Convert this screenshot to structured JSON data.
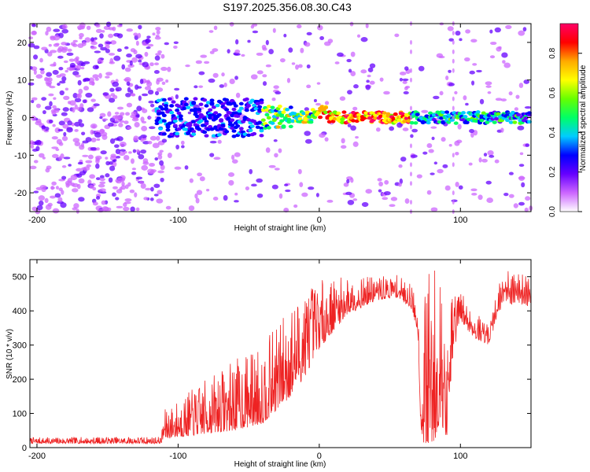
{
  "title": "S197.2025.356.08.30.C43",
  "chart_data": [
    {
      "type": "heatmap",
      "name": "spectrogram",
      "xlabel": "Height of straight line (km)",
      "ylabel": "Frequency (Hz)",
      "xlim": [
        -205,
        150
      ],
      "ylim": [
        -25,
        25
      ],
      "xticks": [
        -200,
        -100,
        0,
        100
      ],
      "xtick_labels": [
        "-200",
        "-100",
        "0",
        "100"
      ],
      "yticks": [
        -20,
        -10,
        0,
        10,
        20
      ],
      "ytick_labels": [
        "-20",
        "-10",
        "0",
        "10",
        "20"
      ],
      "signal_center_hz": 0,
      "signal_onset_km": -115,
      "colorbar": {
        "label": "Normalized spectral amplitude",
        "range": [
          0,
          0.95
        ],
        "ticks": [
          0,
          0.2,
          0.4,
          0.6,
          0.8
        ],
        "tick_labels": [
          "0.0",
          "0.2",
          "0.4",
          "0.6",
          "0.8"
        ],
        "colors": [
          "#ffffff",
          "#cc66ff",
          "#6600ff",
          "#0000ff",
          "#00ccff",
          "#00ff66",
          "#66ff00",
          "#ffff00",
          "#ffaa00",
          "#ff0000",
          "#ff0066"
        ]
      }
    },
    {
      "type": "line",
      "name": "snr",
      "xlabel": "Height of straight line (km)",
      "ylabel": "SNR (10 * v/v)",
      "xlim": [
        -205,
        150
      ],
      "ylim": [
        0,
        550
      ],
      "xticks": [
        -200,
        -100,
        0,
        100
      ],
      "xtick_labels": [
        "-200",
        "-100",
        "0",
        "100"
      ],
      "yticks": [
        0,
        100,
        200,
        300,
        400,
        500
      ],
      "ytick_labels": [
        "0",
        "100",
        "200",
        "300",
        "400",
        "500"
      ],
      "color": "#ee2222",
      "envelope": {
        "x": [
          -205,
          -112,
          -110,
          -100,
          -80,
          -60,
          -40,
          -20,
          -10,
          0,
          20,
          40,
          55,
          65,
          70,
          72,
          74,
          78,
          82,
          86,
          90,
          95,
          100,
          110,
          120,
          130,
          150
        ],
        "low": [
          12,
          12,
          25,
          30,
          40,
          50,
          70,
          150,
          210,
          290,
          390,
          430,
          440,
          410,
          330,
          40,
          10,
          10,
          20,
          90,
          10,
          270,
          370,
          320,
          300,
          420,
          410
        ],
        "high": [
          30,
          32,
          110,
          140,
          200,
          260,
          300,
          420,
          480,
          490,
          500,
          500,
          505,
          480,
          420,
          110,
          500,
          520,
          545,
          500,
          250,
          500,
          460,
          400,
          360,
          520,
          500
        ]
      }
    }
  ]
}
